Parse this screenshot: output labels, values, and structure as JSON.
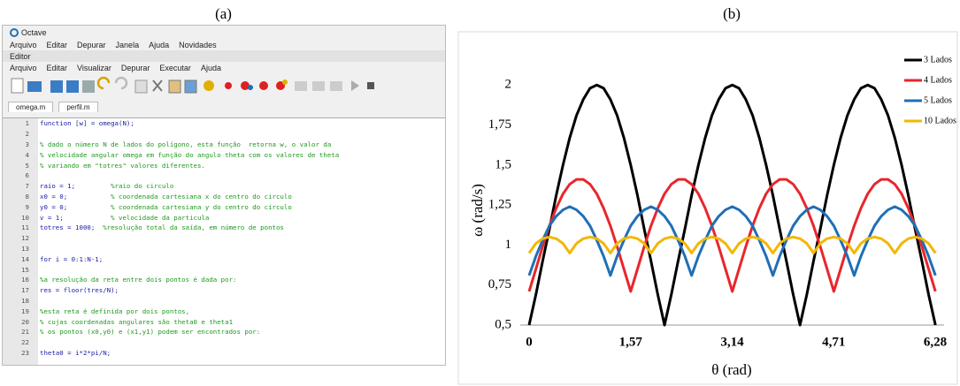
{
  "figure_a": {
    "panel_label": "(a)",
    "window_title": "Octave",
    "menu": [
      "Arquivo",
      "Editar",
      "Depurar",
      "Janela",
      "Ajuda",
      "Novidades"
    ],
    "editor_label": "Editor",
    "editor_menu": [
      "Arquivo",
      "Editar",
      "Visualizar",
      "Depurar",
      "Executar",
      "Ajuda"
    ],
    "tabs": [
      "omega.m",
      "perfil.m"
    ],
    "lines": [
      {
        "n": 1,
        "code": "function [w] = omega(N);"
      },
      {
        "n": 2
      },
      {
        "n": 3,
        "comment": "% dado o número N de lados do polígono, esta função  retorna w, o valor da"
      },
      {
        "n": 4,
        "comment": "% velocidade angular omega em função do angulo theta com os valores de theta"
      },
      {
        "n": 5,
        "comment": "% variando em \"totres\" valores diferentes."
      },
      {
        "n": 6
      },
      {
        "n": 7,
        "code": "raio = 1;         ",
        "comment": "%raio do circulo"
      },
      {
        "n": 8,
        "code": "x0 = 0;           ",
        "comment": "% coordenada cartesiana x do centro do circulo"
      },
      {
        "n": 9,
        "code": "y0 = 0;           ",
        "comment": "% coordenada cartesiana y do centro do circulo"
      },
      {
        "n": 10,
        "code": "v = 1;            ",
        "comment": "% velocidade da particula"
      },
      {
        "n": 11,
        "code": "totres = 1000;  ",
        "comment": "%resolução total da saída, em número de pontos"
      },
      {
        "n": 12
      },
      {
        "n": 13
      },
      {
        "n": 14,
        "code": "for i = 0:1:N-1;"
      },
      {
        "n": 15
      },
      {
        "n": 16,
        "comment": "%a resolução da reta entre dois pontos é dada por:"
      },
      {
        "n": 17,
        "code": "res = floor(tres/N);"
      },
      {
        "n": 18
      },
      {
        "n": 19,
        "comment": "%esta reta é definida por dois pontos,"
      },
      {
        "n": 20,
        "comment": "% cujas coordenadas angulares são theta0 e theta1"
      },
      {
        "n": 21,
        "comment": "% os pontos (x0,y0) e (x1,y1) podem ser encontrados por:"
      },
      {
        "n": 22
      },
      {
        "n": 23,
        "code": "theta0 = i*2*pi/N;"
      }
    ]
  },
  "chart_data": {
    "type": "line",
    "panel_label": "(b)",
    "x_label": "θ (rad)",
    "y_label": "ω (rad/s)",
    "x": [
      0,
      0.105,
      0.209,
      0.314,
      0.419,
      0.524,
      0.628,
      0.733,
      0.838,
      0.942,
      1.047,
      1.152,
      1.257,
      1.361,
      1.466,
      1.571,
      1.676,
      1.78,
      1.885,
      1.99,
      2.094,
      2.199,
      2.304,
      2.409,
      2.513,
      2.618,
      2.723,
      2.827,
      2.932,
      3.037,
      3.142,
      3.246,
      3.351,
      3.456,
      3.56,
      3.665,
      3.77,
      3.875,
      3.979,
      4.084,
      4.189,
      4.294,
      4.398,
      4.503,
      4.608,
      4.712,
      4.817,
      4.922,
      5.027,
      5.131,
      5.236,
      5.341,
      5.445,
      5.55,
      5.655,
      5.76,
      5.864,
      5.969,
      6.074,
      6.178,
      6.283
    ],
    "series": [
      {
        "name": "3 Lados",
        "color": "#000000",
        "values": [
          0.5,
          0.69,
          0.9,
          1.1,
          1.31,
          1.5,
          1.67,
          1.81,
          1.91,
          1.98,
          2,
          1.98,
          1.91,
          1.81,
          1.67,
          1.5,
          1.31,
          1.1,
          0.9,
          0.69,
          0.5,
          0.69,
          0.9,
          1.1,
          1.31,
          1.5,
          1.67,
          1.81,
          1.91,
          1.98,
          2,
          1.98,
          1.91,
          1.81,
          1.67,
          1.5,
          1.31,
          1.1,
          0.9,
          0.69,
          0.5,
          0.69,
          0.9,
          1.1,
          1.31,
          1.5,
          1.67,
          1.81,
          1.91,
          1.98,
          2,
          1.98,
          1.91,
          1.81,
          1.67,
          1.5,
          1.31,
          1.1,
          0.9,
          0.69,
          0.5
        ]
      },
      {
        "name": "4 Lados",
        "color": "#e8262b",
        "values": [
          0.71,
          0.85,
          0.99,
          1.12,
          1.23,
          1.32,
          1.38,
          1.41,
          1.41,
          1.38,
          1.32,
          1.23,
          1.12,
          0.99,
          0.85,
          0.71,
          0.85,
          0.99,
          1.12,
          1.23,
          1.32,
          1.38,
          1.41,
          1.41,
          1.38,
          1.32,
          1.23,
          1.12,
          0.99,
          0.85,
          0.71,
          0.85,
          0.99,
          1.12,
          1.23,
          1.32,
          1.38,
          1.41,
          1.41,
          1.38,
          1.32,
          1.23,
          1.12,
          0.99,
          0.85,
          0.71,
          0.85,
          0.99,
          1.12,
          1.23,
          1.32,
          1.38,
          1.41,
          1.41,
          1.38,
          1.32,
          1.23,
          1.12,
          0.99,
          0.85,
          0.71
        ]
      },
      {
        "name": "5 Lados",
        "color": "#1f6fb5",
        "values": [
          0.81,
          0.93,
          1.03,
          1.12,
          1.18,
          1.22,
          1.24,
          1.22,
          1.18,
          1.12,
          1.03,
          0.93,
          0.81,
          0.93,
          1.03,
          1.12,
          1.18,
          1.22,
          1.24,
          1.22,
          1.18,
          1.12,
          1.03,
          0.93,
          0.81,
          0.93,
          1.03,
          1.12,
          1.18,
          1.22,
          1.24,
          1.22,
          1.18,
          1.12,
          1.03,
          0.93,
          0.81,
          0.93,
          1.03,
          1.12,
          1.18,
          1.22,
          1.24,
          1.22,
          1.18,
          1.12,
          1.03,
          0.93,
          0.81,
          0.93,
          1.03,
          1.12,
          1.18,
          1.22,
          1.24,
          1.22,
          1.18,
          1.12,
          1.03,
          0.93,
          0.81
        ]
      },
      {
        "name": "10 Lados",
        "color": "#f2b705",
        "values": [
          0.95,
          1.01,
          1.04,
          1.05,
          1.04,
          1.01,
          0.95,
          1.01,
          1.04,
          1.05,
          1.04,
          1.01,
          0.95,
          1.01,
          1.04,
          1.05,
          1.04,
          1.01,
          0.95,
          1.01,
          1.04,
          1.05,
          1.04,
          1.01,
          0.95,
          1.01,
          1.04,
          1.05,
          1.04,
          1.01,
          0.95,
          1.01,
          1.04,
          1.05,
          1.04,
          1.01,
          0.95,
          1.01,
          1.04,
          1.05,
          1.04,
          1.01,
          0.95,
          1.01,
          1.04,
          1.05,
          1.04,
          1.01,
          0.95,
          1.01,
          1.04,
          1.05,
          1.04,
          1.01,
          0.95,
          1.01,
          1.04,
          1.05,
          1.04,
          1.01,
          0.95
        ]
      }
    ],
    "xlim": [
      0,
      6.28
    ],
    "xticks": [
      0,
      {
        "value": 1.57,
        "label": "1,57"
      },
      {
        "value": 3.14,
        "label": "3,14"
      },
      {
        "value": 4.71,
        "label": "4,71"
      },
      {
        "value": 6.28,
        "label": "6,28"
      }
    ],
    "ylim": [
      0.5,
      2.2
    ],
    "yticks": [
      {
        "value": 0.5,
        "label": "0,5"
      },
      {
        "value": 0.75,
        "label": "0,75"
      },
      1,
      {
        "value": 1.25,
        "label": "1,25"
      },
      {
        "value": 1.5,
        "label": "1,5"
      },
      {
        "value": 1.75,
        "label": "1,75"
      },
      2
    ],
    "grid": false,
    "legend": "top-right"
  }
}
